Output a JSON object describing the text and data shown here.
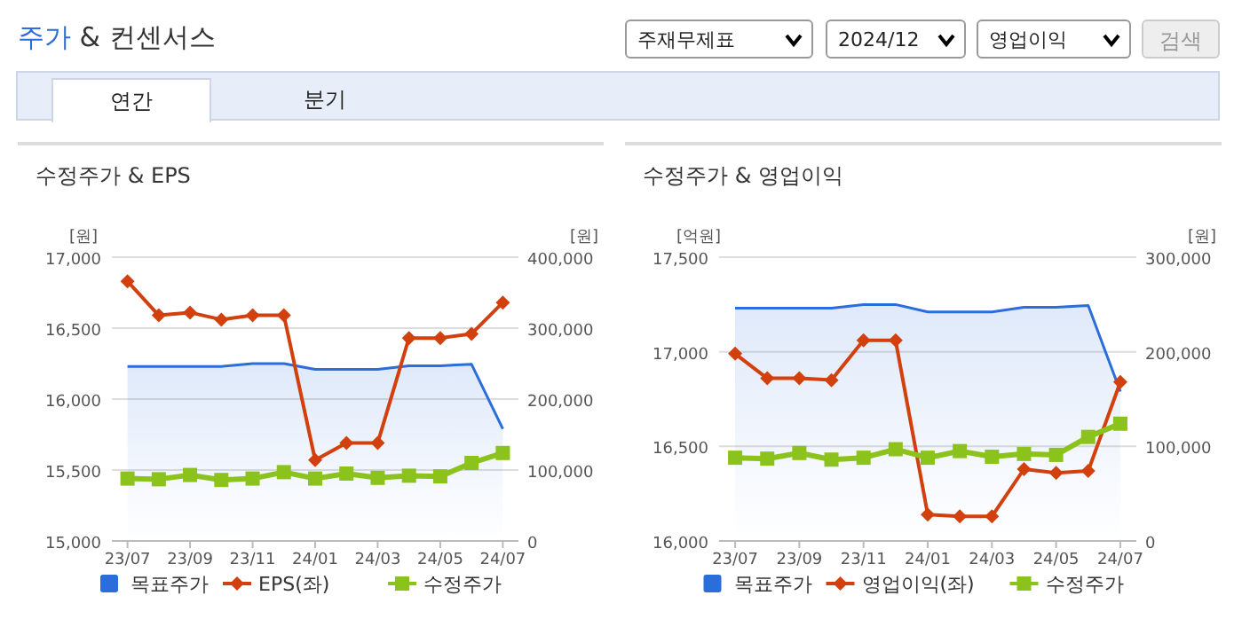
{
  "chart_data": [
    {
      "type": "other",
      "title": "주가 & 컨센서스",
      "annotations": [
        "주재무제표",
        "2024/12",
        "영업이익",
        "검색",
        "연간",
        "분기"
      ]
    },
    {
      "type": "line",
      "title": "수정주가 & EPS",
      "ylabel": "[원]",
      "y2label": "[원]",
      "categories": [
        "23/07",
        null,
        "23/09",
        null,
        "23/11",
        null,
        "24/01",
        null,
        "24/03",
        null,
        "24/05",
        null,
        "24/07"
      ],
      "ylim": [
        15000,
        17000
      ],
      "yticks": [
        {
          "value": 15000,
          "label": "15,000"
        },
        {
          "value": 15500,
          "label": "15,500"
        },
        {
          "value": 16000,
          "label": "16,000"
        },
        {
          "value": 16500,
          "label": "16,500"
        },
        {
          "value": 17000,
          "label": "17,000"
        }
      ],
      "y2lim": [
        0,
        400000
      ],
      "y2ticks": [
        0,
        {
          "value": 100000,
          "label": "100,000"
        },
        {
          "value": 200000,
          "label": "200,000"
        },
        {
          "value": 300000,
          "label": "300,000"
        },
        {
          "value": 400000,
          "label": "400,000"
        }
      ],
      "grid": "y",
      "legend": "bottom",
      "series": [
        {
          "name": "목표주가",
          "type": "area",
          "axis": "y2",
          "color": "#2a6ddb",
          "values": [
            246000,
            246000,
            246000,
            246000,
            250000,
            250000,
            242000,
            242000,
            242000,
            247000,
            247000,
            249000,
            158000
          ]
        },
        {
          "name": "EPS(좌)",
          "type": "line",
          "marker": "diamond",
          "color": "#d2400e",
          "values": [
            16830,
            16590,
            16610,
            16560,
            16590,
            16590,
            15570,
            15690,
            15690,
            16430,
            16430,
            16460,
            16680
          ]
        },
        {
          "name": "수정주가",
          "type": "line",
          "marker": "square",
          "axis": "y2",
          "color": "#8cc21c",
          "values": [
            88000,
            87000,
            93000,
            86000,
            88000,
            97000,
            88000,
            95000,
            89000,
            92000,
            91000,
            110000,
            124000
          ]
        }
      ]
    },
    {
      "type": "line",
      "title": "수정주가 & 영업이익",
      "ylabel": "[억원]",
      "y2label": "[원]",
      "categories": [
        "23/07",
        null,
        "23/09",
        null,
        "23/11",
        null,
        "24/01",
        null,
        "24/03",
        null,
        "24/05",
        null,
        "24/07"
      ],
      "ylim": [
        16000,
        17500
      ],
      "yticks": [
        {
          "value": 16000,
          "label": "16,000"
        },
        {
          "value": 16500,
          "label": "16,500"
        },
        {
          "value": 17000,
          "label": "17,000"
        },
        {
          "value": 17500,
          "label": "17,500"
        }
      ],
      "y2lim": [
        0,
        300000
      ],
      "y2ticks": [
        0,
        {
          "value": 100000,
          "label": "100,000"
        },
        {
          "value": 200000,
          "label": "200,000"
        },
        {
          "value": 300000,
          "label": "300,000"
        }
      ],
      "grid": "y",
      "legend": "bottom",
      "series": [
        {
          "name": "목표주가",
          "type": "area",
          "axis": "y2",
          "color": "#2a6ddb",
          "values": [
            246000,
            246000,
            246000,
            246000,
            250000,
            250000,
            242000,
            242000,
            242000,
            247000,
            247000,
            249000,
            158000
          ]
        },
        {
          "name": "영업이익(좌)",
          "type": "line",
          "marker": "diamond",
          "color": "#d2400e",
          "values": [
            16990,
            16860,
            16860,
            16850,
            17060,
            17060,
            16140,
            16130,
            16130,
            16380,
            16360,
            16370,
            16840
          ]
        },
        {
          "name": "수정주가",
          "type": "line",
          "marker": "square",
          "axis": "y2",
          "color": "#8cc21c",
          "values": [
            88000,
            87000,
            93000,
            86000,
            88000,
            97000,
            88000,
            95000,
            89000,
            92000,
            91000,
            110000,
            124000
          ]
        }
      ]
    }
  ]
}
